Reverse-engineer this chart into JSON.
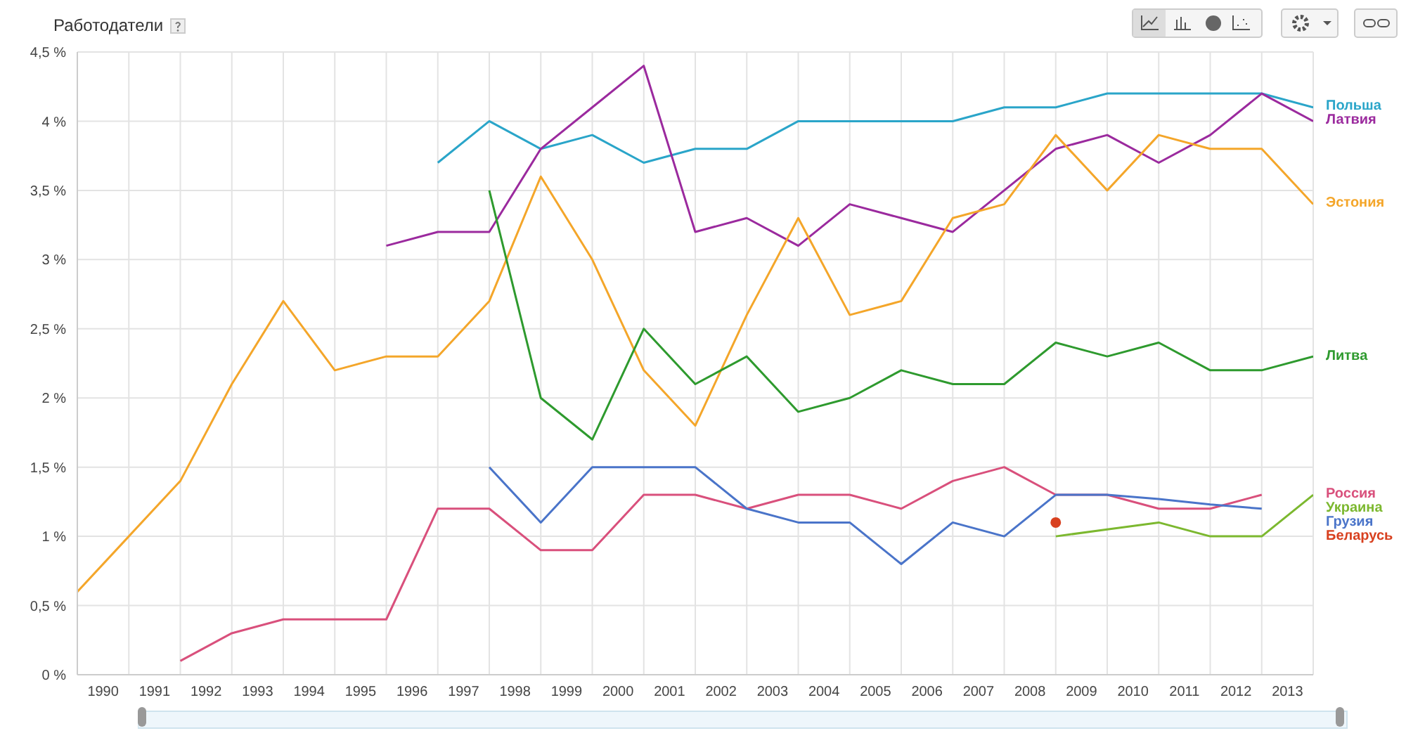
{
  "chart_data": {
    "type": "line",
    "title": "Работодатели",
    "x": [
      1990,
      1991,
      1992,
      1993,
      1994,
      1995,
      1996,
      1997,
      1998,
      1999,
      2000,
      2001,
      2002,
      2003,
      2004,
      2005,
      2006,
      2007,
      2008,
      2009,
      2010,
      2011,
      2012,
      2013,
      2014
    ],
    "series": [
      {
        "name": "Польша",
        "color": "#2aa5c9",
        "values": [
          null,
          null,
          null,
          null,
          null,
          null,
          null,
          3.7,
          4.0,
          3.8,
          3.9,
          3.7,
          3.8,
          3.8,
          4.0,
          4.0,
          4.0,
          4.0,
          4.1,
          4.1,
          4.2,
          4.2,
          4.2,
          4.2,
          4.1
        ]
      },
      {
        "name": "Латвия",
        "color": "#9b2a9e",
        "values": [
          null,
          null,
          null,
          null,
          null,
          null,
          3.1,
          3.2,
          3.2,
          3.8,
          4.1,
          4.4,
          3.2,
          3.3,
          3.1,
          3.4,
          3.3,
          3.2,
          3.5,
          3.8,
          3.9,
          3.7,
          3.9,
          4.2,
          4.0
        ]
      },
      {
        "name": "Эстония",
        "color": "#f4a62a",
        "values": [
          0.6,
          1.0,
          1.4,
          2.1,
          2.7,
          2.2,
          2.3,
          2.3,
          2.7,
          3.6,
          3.0,
          2.2,
          1.8,
          2.6,
          3.3,
          2.6,
          2.7,
          3.3,
          3.4,
          3.9,
          3.5,
          3.9,
          3.8,
          3.8,
          3.4
        ]
      },
      {
        "name": "Литва",
        "color": "#2e9a2e",
        "values": [
          null,
          null,
          null,
          null,
          null,
          null,
          null,
          null,
          3.5,
          2.0,
          1.7,
          2.5,
          2.1,
          2.3,
          1.9,
          2.0,
          2.2,
          2.1,
          2.1,
          2.4,
          2.3,
          2.4,
          2.2,
          2.2,
          2.3
        ]
      },
      {
        "name": "Россия",
        "color": "#d9507c",
        "values": [
          null,
          null,
          0.1,
          0.3,
          0.4,
          0.4,
          0.4,
          1.2,
          1.2,
          0.9,
          0.9,
          1.3,
          1.3,
          1.2,
          1.3,
          1.3,
          1.2,
          1.4,
          1.5,
          1.3,
          1.3,
          1.2,
          1.2,
          1.3,
          null
        ]
      },
      {
        "name": "Украина",
        "color": "#7cb82f",
        "values": [
          null,
          null,
          null,
          null,
          null,
          null,
          null,
          null,
          null,
          null,
          null,
          null,
          null,
          null,
          null,
          null,
          null,
          null,
          null,
          1.0,
          1.05,
          1.1,
          1.0,
          1.0,
          1.3
        ]
      },
      {
        "name": "Грузия",
        "color": "#4a74c9",
        "values": [
          null,
          null,
          null,
          null,
          null,
          null,
          null,
          null,
          1.5,
          1.1,
          1.5,
          1.5,
          1.5,
          1.2,
          1.1,
          1.1,
          0.8,
          1.1,
          1.0,
          1.3,
          1.3,
          1.27,
          1.23,
          1.2,
          null
        ]
      },
      {
        "name": "Беларусь",
        "color": "#d8401f",
        "marker": "circle",
        "values": [
          null,
          null,
          null,
          null,
          null,
          null,
          null,
          null,
          null,
          null,
          null,
          null,
          null,
          null,
          null,
          null,
          null,
          null,
          null,
          1.1,
          null,
          null,
          null,
          null,
          null
        ]
      }
    ],
    "xlim": [
      1990,
      2014
    ],
    "xticks": [
      {
        "value": 1990,
        "label": null
      },
      {
        "value": 1990.5,
        "label": "1990"
      },
      {
        "value": 1991,
        "label": null
      },
      {
        "value": 1991.5,
        "label": "1991"
      },
      {
        "value": 1992,
        "label": null
      },
      {
        "value": 1992.5,
        "label": "1992"
      },
      {
        "value": 1993,
        "label": null
      },
      {
        "value": 1993.5,
        "label": "1993"
      },
      {
        "value": 1994,
        "label": null
      },
      {
        "value": 1994.5,
        "label": "1994"
      },
      {
        "value": 1995,
        "label": null
      },
      {
        "value": 1995.5,
        "label": "1995"
      },
      {
        "value": 1996,
        "label": null
      },
      {
        "value": 1996.5,
        "label": "1996"
      },
      {
        "value": 1997,
        "label": null
      },
      {
        "value": 1997.5,
        "label": "1997"
      },
      {
        "value": 1998,
        "label": null
      },
      {
        "value": 1998.5,
        "label": "1998"
      },
      {
        "value": 1999,
        "label": null
      },
      {
        "value": 1999.5,
        "label": "1999"
      },
      {
        "value": 2000,
        "label": null
      },
      {
        "value": 2000.5,
        "label": "2000"
      },
      {
        "value": 2001,
        "label": null
      },
      {
        "value": 2001.5,
        "label": "2001"
      },
      {
        "value": 2002,
        "label": null
      },
      {
        "value": 2002.5,
        "label": "2002"
      },
      {
        "value": 2003,
        "label": null
      },
      {
        "value": 2003.5,
        "label": "2003"
      },
      {
        "value": 2004,
        "label": null
      },
      {
        "value": 2004.5,
        "label": "2004"
      },
      {
        "value": 2005,
        "label": null
      },
      {
        "value": 2005.5,
        "label": "2005"
      },
      {
        "value": 2006,
        "label": null
      },
      {
        "value": 2006.5,
        "label": "2006"
      },
      {
        "value": 2007,
        "label": null
      },
      {
        "value": 2007.5,
        "label": "2007"
      },
      {
        "value": 2008,
        "label": null
      },
      {
        "value": 2008.5,
        "label": "2008"
      },
      {
        "value": 2009,
        "label": null
      },
      {
        "value": 2009.5,
        "label": "2009"
      },
      {
        "value": 2010,
        "label": null
      },
      {
        "value": 2010.5,
        "label": "2010"
      },
      {
        "value": 2011,
        "label": null
      },
      {
        "value": 2011.5,
        "label": "2011"
      },
      {
        "value": 2012,
        "label": null
      },
      {
        "value": 2012.5,
        "label": "2012"
      },
      {
        "value": 2013,
        "label": null
      },
      {
        "value": 2013.5,
        "label": "2013"
      },
      {
        "value": 2014,
        "label": null
      }
    ],
    "ylim": [
      0,
      4.5
    ],
    "yticks": [
      {
        "value": 0,
        "label": "0 %"
      },
      {
        "value": 0.5,
        "label": "0,5 %"
      },
      {
        "value": 1,
        "label": "1 %"
      },
      {
        "value": 1.5,
        "label": "1,5 %"
      },
      {
        "value": 2,
        "label": "2 %"
      },
      {
        "value": 2.5,
        "label": "2,5 %"
      },
      {
        "value": 3,
        "label": "3 %"
      },
      {
        "value": 3.5,
        "label": "3,5 %"
      },
      {
        "value": 4,
        "label": "4 %"
      },
      {
        "value": 4.5,
        "label": "4,5 %"
      }
    ],
    "grid": true,
    "legend": "right",
    "marker": "none",
    "line_style": "solid"
  }
}
